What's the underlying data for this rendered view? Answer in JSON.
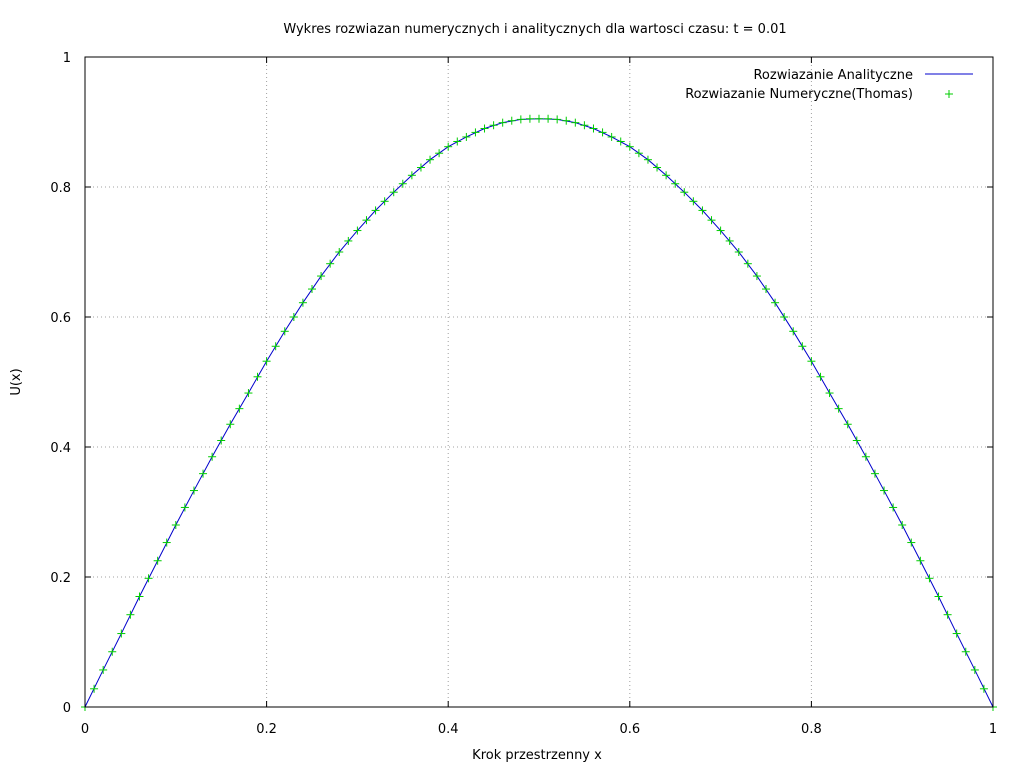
{
  "chart_data": {
    "type": "line",
    "title": "Wykres rozwiazan numerycznych i analitycznych dla wartosci czasu: t = 0.01",
    "xlabel": "Krok przestrzenny x",
    "ylabel": "U(x)",
    "xlim": [
      0,
      1
    ],
    "ylim": [
      0,
      1
    ],
    "xticks": [
      "0",
      "0.2",
      "0.4",
      "0.6",
      "0.8",
      "1"
    ],
    "xtick_values": [
      0,
      0.2,
      0.4,
      0.6,
      0.8,
      1
    ],
    "yticks": [
      "0",
      "0.2",
      "0.4",
      "0.6",
      "0.8",
      "1"
    ],
    "ytick_values": [
      0,
      0.2,
      0.4,
      0.6,
      0.8,
      1
    ],
    "grid": true,
    "legend_position": "top-right",
    "series": [
      {
        "name": "Rozwiazanie Analityczne",
        "style": "line",
        "color": "#0000cc",
        "x": [
          0,
          0.02,
          0.04,
          0.06,
          0.08,
          0.1,
          0.12,
          0.14,
          0.16,
          0.18,
          0.2,
          0.22,
          0.24,
          0.26,
          0.28,
          0.3,
          0.32,
          0.34,
          0.36,
          0.38,
          0.4,
          0.42,
          0.44,
          0.46,
          0.48,
          0.5,
          0.52,
          0.54,
          0.56,
          0.58,
          0.6,
          0.62,
          0.64,
          0.66,
          0.68,
          0.7,
          0.72,
          0.74,
          0.76,
          0.78,
          0.8,
          0.82,
          0.84,
          0.86,
          0.88,
          0.9,
          0.92,
          0.94,
          0.96,
          0.98,
          1
        ],
        "y": [
          0,
          0.057,
          0.113,
          0.17,
          0.225,
          0.28,
          0.333,
          0.385,
          0.435,
          0.483,
          0.532,
          0.578,
          0.622,
          0.663,
          0.7,
          0.733,
          0.764,
          0.792,
          0.818,
          0.842,
          0.862,
          0.877,
          0.89,
          0.899,
          0.904,
          0.905,
          0.904,
          0.899,
          0.89,
          0.877,
          0.862,
          0.842,
          0.818,
          0.792,
          0.764,
          0.733,
          0.7,
          0.663,
          0.622,
          0.578,
          0.532,
          0.483,
          0.435,
          0.385,
          0.333,
          0.28,
          0.225,
          0.17,
          0.113,
          0.057,
          0
        ]
      },
      {
        "name": "Rozwiazanie Numeryczne(Thomas)",
        "style": "points",
        "marker": "+",
        "color": "#00cc00",
        "x": [
          0,
          0.01,
          0.02,
          0.03,
          0.04,
          0.05,
          0.06,
          0.07,
          0.08,
          0.09,
          0.1,
          0.11,
          0.12,
          0.13,
          0.14,
          0.15,
          0.16,
          0.17,
          0.18,
          0.19,
          0.2,
          0.21,
          0.22,
          0.23,
          0.24,
          0.25,
          0.26,
          0.27,
          0.28,
          0.29,
          0.3,
          0.31,
          0.32,
          0.33,
          0.34,
          0.35,
          0.36,
          0.37,
          0.38,
          0.39,
          0.4,
          0.41,
          0.42,
          0.43,
          0.44,
          0.45,
          0.46,
          0.47,
          0.48,
          0.49,
          0.5,
          0.51,
          0.52,
          0.53,
          0.54,
          0.55,
          0.56,
          0.57,
          0.58,
          0.59,
          0.6,
          0.61,
          0.62,
          0.63,
          0.64,
          0.65,
          0.66,
          0.67,
          0.68,
          0.69,
          0.7,
          0.71,
          0.72,
          0.73,
          0.74,
          0.75,
          0.76,
          0.77,
          0.78,
          0.79,
          0.8,
          0.81,
          0.82,
          0.83,
          0.84,
          0.85,
          0.86,
          0.87,
          0.88,
          0.89,
          0.9,
          0.91,
          0.92,
          0.93,
          0.94,
          0.95,
          0.96,
          0.97,
          0.98,
          0.99,
          1
        ],
        "y": [
          0,
          0.028,
          0.057,
          0.085,
          0.113,
          0.142,
          0.17,
          0.198,
          0.225,
          0.253,
          0.28,
          0.307,
          0.333,
          0.359,
          0.385,
          0.41,
          0.435,
          0.459,
          0.483,
          0.508,
          0.532,
          0.555,
          0.578,
          0.6,
          0.622,
          0.643,
          0.663,
          0.682,
          0.7,
          0.717,
          0.733,
          0.749,
          0.764,
          0.778,
          0.792,
          0.805,
          0.818,
          0.83,
          0.842,
          0.852,
          0.862,
          0.87,
          0.877,
          0.884,
          0.89,
          0.895,
          0.899,
          0.902,
          0.904,
          0.905,
          0.905,
          0.905,
          0.904,
          0.902,
          0.899,
          0.895,
          0.89,
          0.884,
          0.877,
          0.87,
          0.862,
          0.852,
          0.842,
          0.83,
          0.818,
          0.805,
          0.792,
          0.778,
          0.764,
          0.749,
          0.733,
          0.717,
          0.7,
          0.682,
          0.663,
          0.643,
          0.622,
          0.6,
          0.578,
          0.555,
          0.532,
          0.508,
          0.483,
          0.459,
          0.435,
          0.41,
          0.385,
          0.359,
          0.333,
          0.307,
          0.28,
          0.253,
          0.225,
          0.198,
          0.17,
          0.142,
          0.113,
          0.085,
          0.057,
          0.028,
          0
        ]
      }
    ]
  }
}
